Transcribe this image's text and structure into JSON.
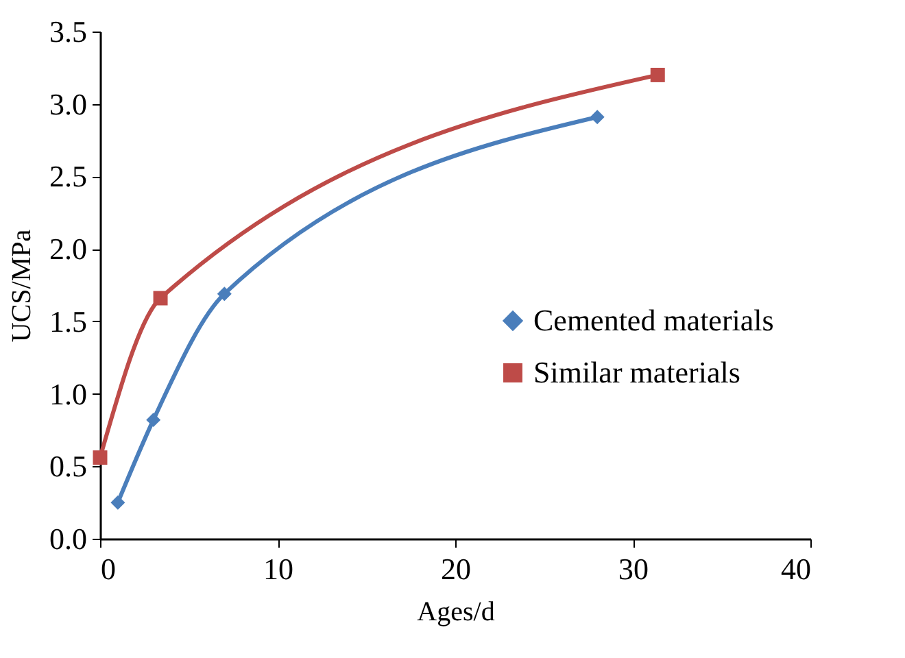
{
  "chart_data": {
    "type": "line",
    "xlabel": "Ages/d",
    "ylabel": "UCS/MPa",
    "xlim": [
      0,
      40
    ],
    "xticks": [
      0,
      10,
      20,
      30,
      40
    ],
    "ylim": [
      0,
      3.5
    ],
    "yticks": [
      {
        "value": 0,
        "label": "0.0"
      },
      {
        "value": 0.5,
        "label": "0.5"
      },
      {
        "value": 1,
        "label": "1.0"
      },
      {
        "value": 1.5,
        "label": "1.5"
      },
      {
        "value": 2,
        "label": "2.0"
      },
      {
        "value": 2.5,
        "label": "2.5"
      },
      {
        "value": 3,
        "label": "3.0"
      },
      {
        "value": 3.5,
        "label": "3.5"
      }
    ],
    "legend": "right",
    "grid": false,
    "series": [
      {
        "name": "Cemented materials",
        "color": "#4a7ebb",
        "marker": "diamond",
        "x": [
          1,
          3,
          7,
          28
        ],
        "values": [
          0.25,
          0.82,
          1.69,
          2.91
        ]
      },
      {
        "name": "Similar materials",
        "color": "#be4b48",
        "marker": "square",
        "x": [
          0,
          3.4,
          31.4
        ],
        "values": [
          0.56,
          1.66,
          3.2
        ]
      }
    ]
  }
}
